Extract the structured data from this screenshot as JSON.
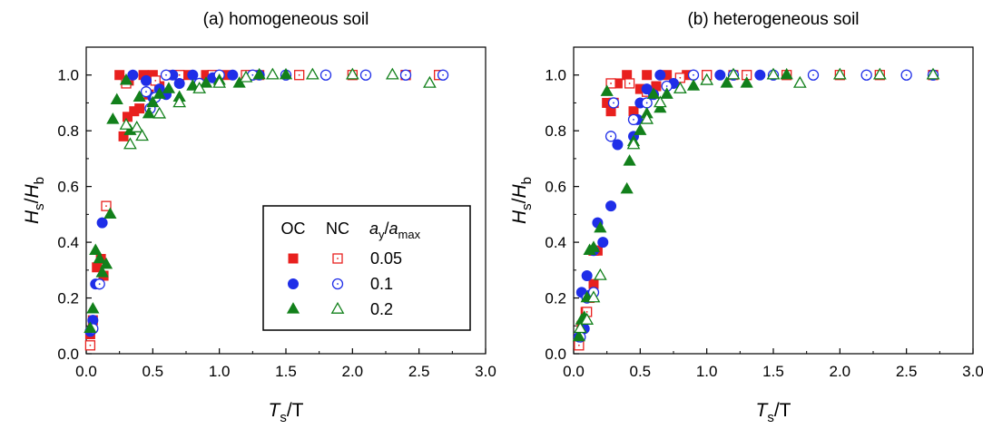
{
  "chart_data": [
    {
      "type": "scatter",
      "title": "(a) homogeneous soil",
      "xlabel": {
        "main": "T",
        "sub": "s",
        "rest": "/T"
      },
      "ylabel": {
        "main": "H",
        "sub": "s",
        "sep": "/",
        "main2": "H",
        "sub2": "b"
      },
      "xlim": [
        0,
        3.0
      ],
      "ylim": [
        0,
        1.1
      ],
      "xticks": [
        "0.0",
        "0.5",
        "1.0",
        "1.5",
        "2.0",
        "2.5",
        "3.0"
      ],
      "yticks": [
        "0.0",
        "0.2",
        "0.4",
        "0.6",
        "0.8",
        "1.0"
      ],
      "legend": {
        "placement": "center-right",
        "headers": {
          "oc": "OC",
          "nc": "NC",
          "ratio": {
            "a": "a",
            "sub": "y",
            "slash": "/",
            "a2": "a",
            "sub2": "max"
          }
        },
        "rows": [
          {
            "label": "0.05",
            "color": "#e8201e",
            "shape": "square"
          },
          {
            "label": "0.1",
            "color": "#1f2ee8",
            "shape": "circle"
          },
          {
            "label": "0.2",
            "color": "#12801b",
            "shape": "triangle"
          }
        ]
      },
      "series": [
        {
          "color": "#e8201e",
          "shape": "square",
          "filled": true,
          "points": [
            [
              0.03,
              0.07
            ],
            [
              0.05,
              0.12
            ],
            [
              0.08,
              0.31
            ],
            [
              0.11,
              0.34
            ],
            [
              0.13,
              0.28
            ],
            [
              0.25,
              1.0
            ],
            [
              0.28,
              0.78
            ],
            [
              0.31,
              0.85
            ],
            [
              0.32,
              0.98
            ],
            [
              0.36,
              0.87
            ],
            [
              0.4,
              0.88
            ],
            [
              0.43,
              1.0
            ],
            [
              0.47,
              0.93
            ],
            [
              0.5,
              1.0
            ],
            [
              0.55,
              0.96
            ],
            [
              0.62,
              1.0
            ],
            [
              0.75,
              1.0
            ],
            [
              0.9,
              1.0
            ],
            [
              1.05,
              1.0
            ],
            [
              1.3,
              1.0
            ]
          ]
        },
        {
          "color": "#e8201e",
          "shape": "square",
          "filled": false,
          "points": [
            [
              0.03,
              0.03
            ],
            [
              0.15,
              0.53
            ],
            [
              0.3,
              0.97
            ],
            [
              0.52,
              0.98
            ],
            [
              0.7,
              1.0
            ],
            [
              0.95,
              1.0
            ],
            [
              1.2,
              1.0
            ],
            [
              1.6,
              1.0
            ],
            [
              2.0,
              1.0
            ],
            [
              2.4,
              1.0
            ],
            [
              2.65,
              1.0
            ]
          ]
        },
        {
          "color": "#1f2ee8",
          "shape": "circle",
          "filled": true,
          "points": [
            [
              0.03,
              0.08
            ],
            [
              0.05,
              0.12
            ],
            [
              0.07,
              0.25
            ],
            [
              0.12,
              0.47
            ],
            [
              0.35,
              1.0
            ],
            [
              0.45,
              0.98
            ],
            [
              0.5,
              0.92
            ],
            [
              0.55,
              0.95
            ],
            [
              0.6,
              0.93
            ],
            [
              0.65,
              1.0
            ],
            [
              0.7,
              0.97
            ],
            [
              0.8,
              1.0
            ],
            [
              0.95,
              0.99
            ],
            [
              1.1,
              1.0
            ],
            [
              1.3,
              1.0
            ]
          ]
        },
        {
          "color": "#1f2ee8",
          "shape": "circle",
          "filled": false,
          "points": [
            [
              0.05,
              0.09
            ],
            [
              0.1,
              0.25
            ],
            [
              0.45,
              0.94
            ],
            [
              0.48,
              0.88
            ],
            [
              0.52,
              0.92
            ],
            [
              0.6,
              1.0
            ],
            [
              0.85,
              0.97
            ],
            [
              1.0,
              1.0
            ],
            [
              1.25,
              1.0
            ],
            [
              1.5,
              1.0
            ],
            [
              1.8,
              1.0
            ],
            [
              2.1,
              1.0
            ],
            [
              2.4,
              1.0
            ],
            [
              2.68,
              1.0
            ]
          ]
        },
        {
          "color": "#12801b",
          "shape": "triangle",
          "filled": true,
          "points": [
            [
              0.03,
              0.09
            ],
            [
              0.05,
              0.16
            ],
            [
              0.07,
              0.37
            ],
            [
              0.1,
              0.34
            ],
            [
              0.12,
              0.29
            ],
            [
              0.15,
              0.32
            ],
            [
              0.18,
              0.5
            ],
            [
              0.2,
              0.84
            ],
            [
              0.23,
              0.91
            ],
            [
              0.3,
              0.98
            ],
            [
              0.33,
              0.8
            ],
            [
              0.4,
              0.92
            ],
            [
              0.47,
              0.86
            ],
            [
              0.5,
              0.9
            ],
            [
              0.55,
              0.93
            ],
            [
              0.62,
              0.95
            ],
            [
              0.7,
              0.92
            ],
            [
              0.8,
              0.96
            ],
            [
              0.9,
              0.97
            ],
            [
              1.0,
              0.98
            ],
            [
              1.15,
              0.97
            ],
            [
              1.3,
              1.0
            ],
            [
              1.5,
              1.0
            ]
          ]
        },
        {
          "color": "#12801b",
          "shape": "triangle",
          "filled": false,
          "points": [
            [
              0.3,
              0.82
            ],
            [
              0.33,
              0.75
            ],
            [
              0.38,
              0.81
            ],
            [
              0.42,
              0.78
            ],
            [
              0.55,
              0.86
            ],
            [
              0.7,
              0.9
            ],
            [
              0.85,
              0.95
            ],
            [
              1.0,
              0.97
            ],
            [
              1.2,
              0.99
            ],
            [
              1.4,
              1.0
            ],
            [
              1.7,
              1.0
            ],
            [
              2.0,
              1.0
            ],
            [
              2.3,
              1.0
            ],
            [
              2.58,
              0.97
            ]
          ]
        }
      ]
    },
    {
      "type": "scatter",
      "title": "(b) heterogeneous soil",
      "xlabel": {
        "main": "T",
        "sub": "s",
        "rest": "/T"
      },
      "ylabel": {
        "main": "H",
        "sub": "s",
        "sep": "/",
        "main2": "H",
        "sub2": "b"
      },
      "xlim": [
        0,
        3.0
      ],
      "ylim": [
        0,
        1.1
      ],
      "xticks": [
        "0.0",
        "0.5",
        "1.0",
        "1.5",
        "2.0",
        "2.5",
        "3.0"
      ],
      "yticks": [
        "0.0",
        "0.2",
        "0.4",
        "0.6",
        "0.8",
        "1.0"
      ],
      "series": [
        {
          "color": "#e8201e",
          "shape": "square",
          "filled": true,
          "points": [
            [
              0.04,
              0.05
            ],
            [
              0.06,
              0.1
            ],
            [
              0.09,
              0.15
            ],
            [
              0.12,
              0.2
            ],
            [
              0.15,
              0.25
            ],
            [
              0.18,
              0.37
            ],
            [
              0.25,
              0.9
            ],
            [
              0.28,
              0.87
            ],
            [
              0.33,
              0.97
            ],
            [
              0.4,
              1.0
            ],
            [
              0.45,
              0.87
            ],
            [
              0.5,
              0.95
            ],
            [
              0.55,
              1.0
            ],
            [
              0.62,
              0.96
            ],
            [
              0.7,
              1.0
            ],
            [
              0.85,
              1.0
            ],
            [
              1.0,
              1.0
            ],
            [
              1.2,
              1.0
            ]
          ]
        },
        {
          "color": "#e8201e",
          "shape": "square",
          "filled": false,
          "points": [
            [
              0.04,
              0.03
            ],
            [
              0.1,
              0.15
            ],
            [
              0.15,
              0.37
            ],
            [
              0.28,
              0.97
            ],
            [
              0.3,
              0.9
            ],
            [
              0.42,
              0.97
            ],
            [
              0.55,
              0.94
            ],
            [
              0.8,
              0.99
            ],
            [
              1.0,
              1.0
            ],
            [
              1.3,
              1.0
            ],
            [
              1.6,
              1.0
            ],
            [
              2.0,
              1.0
            ],
            [
              2.3,
              1.0
            ],
            [
              2.7,
              1.0
            ]
          ]
        },
        {
          "color": "#1f2ee8",
          "shape": "circle",
          "filled": true,
          "points": [
            [
              0.04,
              0.06
            ],
            [
              0.06,
              0.22
            ],
            [
              0.08,
              0.09
            ],
            [
              0.1,
              0.28
            ],
            [
              0.12,
              0.21
            ],
            [
              0.15,
              0.37
            ],
            [
              0.18,
              0.47
            ],
            [
              0.22,
              0.4
            ],
            [
              0.28,
              0.53
            ],
            [
              0.33,
              0.75
            ],
            [
              0.45,
              0.78
            ],
            [
              0.48,
              0.84
            ],
            [
              0.5,
              0.9
            ],
            [
              0.55,
              0.95
            ],
            [
              0.6,
              0.93
            ],
            [
              0.65,
              1.0
            ],
            [
              0.75,
              0.97
            ],
            [
              0.9,
              1.0
            ],
            [
              1.1,
              1.0
            ],
            [
              1.4,
              1.0
            ]
          ]
        },
        {
          "color": "#1f2ee8",
          "shape": "circle",
          "filled": false,
          "points": [
            [
              0.05,
              0.06
            ],
            [
              0.1,
              0.2
            ],
            [
              0.15,
              0.22
            ],
            [
              0.28,
              0.78
            ],
            [
              0.3,
              0.9
            ],
            [
              0.45,
              0.84
            ],
            [
              0.55,
              0.9
            ],
            [
              0.7,
              0.96
            ],
            [
              0.9,
              1.0
            ],
            [
              1.2,
              1.0
            ],
            [
              1.5,
              1.0
            ],
            [
              1.8,
              1.0
            ],
            [
              2.2,
              1.0
            ],
            [
              2.5,
              1.0
            ],
            [
              2.7,
              1.0
            ]
          ]
        },
        {
          "color": "#12801b",
          "shape": "triangle",
          "filled": true,
          "points": [
            [
              0.04,
              0.06
            ],
            [
              0.06,
              0.12
            ],
            [
              0.08,
              0.13
            ],
            [
              0.1,
              0.2
            ],
            [
              0.12,
              0.37
            ],
            [
              0.15,
              0.38
            ],
            [
              0.2,
              0.45
            ],
            [
              0.25,
              0.94
            ],
            [
              0.4,
              0.59
            ],
            [
              0.42,
              0.69
            ],
            [
              0.45,
              0.76
            ],
            [
              0.5,
              0.8
            ],
            [
              0.55,
              0.86
            ],
            [
              0.6,
              0.93
            ],
            [
              0.65,
              0.88
            ],
            [
              0.7,
              0.93
            ],
            [
              0.8,
              0.95
            ],
            [
              0.9,
              0.96
            ],
            [
              1.0,
              0.98
            ],
            [
              1.15,
              0.97
            ],
            [
              1.3,
              0.97
            ],
            [
              1.6,
              1.0
            ]
          ]
        },
        {
          "color": "#12801b",
          "shape": "triangle",
          "filled": false,
          "points": [
            [
              0.05,
              0.09
            ],
            [
              0.1,
              0.12
            ],
            [
              0.15,
              0.2
            ],
            [
              0.2,
              0.28
            ],
            [
              0.45,
              0.75
            ],
            [
              0.55,
              0.84
            ],
            [
              0.65,
              0.9
            ],
            [
              0.8,
              0.95
            ],
            [
              1.0,
              0.98
            ],
            [
              1.2,
              1.0
            ],
            [
              1.5,
              1.0
            ],
            [
              1.7,
              0.97
            ],
            [
              2.0,
              1.0
            ],
            [
              2.3,
              1.0
            ],
            [
              2.7,
              1.0
            ]
          ]
        }
      ]
    }
  ]
}
